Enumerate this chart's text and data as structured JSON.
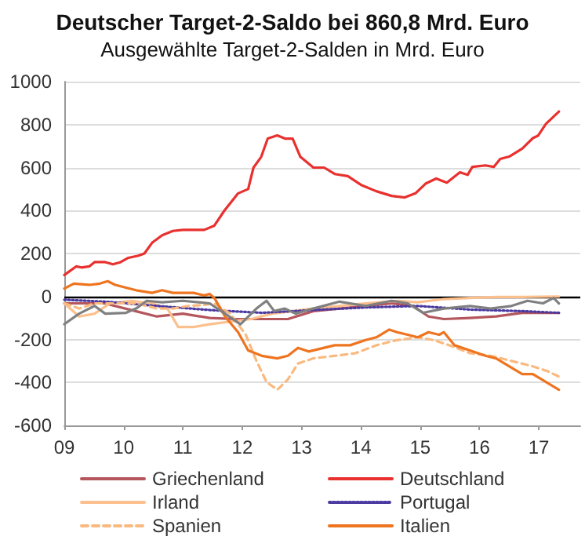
{
  "chart_data": {
    "type": "line",
    "title": "Deutscher Target-2-Saldo bei 860,8 Mrd. Euro",
    "subtitle": "Ausgewählte Target-2-Salden in Mrd. Euro",
    "xlim": [
      2009,
      2017.7
    ],
    "xticks": [
      {
        "value": 2009,
        "label": "09"
      },
      {
        "value": 2010,
        "label": "10"
      },
      {
        "value": 2011,
        "label": "11"
      },
      {
        "value": 2012,
        "label": "12"
      },
      {
        "value": 2013,
        "label": "13"
      },
      {
        "value": 2014,
        "label": "14"
      },
      {
        "value": 2015,
        "label": "15"
      },
      {
        "value": 2016,
        "label": "16"
      },
      {
        "value": 2017,
        "label": "17"
      }
    ],
    "ylim": [
      -600,
      1000
    ],
    "yticks": [
      -600,
      -400,
      -200,
      0,
      200,
      400,
      600,
      800,
      1000
    ],
    "grid": "y",
    "legend": "bottom",
    "marker": "none",
    "ref_lines": [
      {
        "axis": "y",
        "value": 0,
        "label": null,
        "color": "#000000"
      }
    ],
    "series": [
      {
        "name": "Griechenland",
        "color": "#b5555c",
        "line_style": "solid",
        "x": [
          2009.0,
          2009.68,
          2010.2,
          2010.56,
          2011.0,
          2011.45,
          2011.89,
          2012.33,
          2012.77,
          2013.2,
          2013.64,
          2014.08,
          2014.52,
          2014.88,
          2015.14,
          2015.4,
          2015.84,
          2016.28,
          2016.72,
          2017.34
        ],
        "values": [
          -32,
          -32,
          -68,
          -93,
          -80,
          -100,
          -105,
          -105,
          -105,
          -68,
          -56,
          -44,
          -32,
          -44,
          -93,
          -105,
          -100,
          -93,
          -76,
          -76
        ]
      },
      {
        "name": "Deutschland",
        "color": "#e8312f",
        "line_style": "solid",
        "x": [
          2009.0,
          2009.2,
          2009.29,
          2009.42,
          2009.51,
          2009.69,
          2009.82,
          2009.95,
          2010.08,
          2010.25,
          2010.35,
          2010.48,
          2010.65,
          2010.83,
          2011.0,
          2011.36,
          2011.53,
          2011.7,
          2011.93,
          2012.1,
          2012.19,
          2012.32,
          2012.43,
          2012.59,
          2012.72,
          2012.85,
          2012.98,
          2013.2,
          2013.38,
          2013.56,
          2013.78,
          2014.0,
          2014.26,
          2014.52,
          2014.74,
          2014.92,
          2015.09,
          2015.27,
          2015.45,
          2015.67,
          2015.8,
          2015.88,
          2016.1,
          2016.24,
          2016.35,
          2016.5,
          2016.72,
          2016.9,
          2016.99,
          2017.12,
          2017.34
        ],
        "values": [
          100,
          140,
          135,
          140,
          160,
          160,
          150,
          160,
          180,
          190,
          200,
          250,
          285,
          305,
          310,
          310,
          330,
          400,
          480,
          500,
          600,
          650,
          735,
          750,
          735,
          735,
          650,
          600,
          600,
          570,
          560,
          520,
          490,
          468,
          461,
          480,
          525,
          549,
          530,
          578,
          566,
          603,
          610,
          603,
          640,
          651,
          688,
          737,
          749,
          803,
          861
        ]
      },
      {
        "name": "Irland",
        "color": "#fbc08d",
        "line_style": "solid",
        "x": [
          2009.0,
          2009.25,
          2009.51,
          2009.77,
          2010.13,
          2010.48,
          2010.74,
          2010.92,
          2011.18,
          2011.45,
          2011.8,
          2012.15,
          2012.5,
          2012.85,
          2013.2,
          2013.64,
          2014.08,
          2014.61,
          2014.96,
          2015.4,
          2015.84,
          2016.28,
          2016.72,
          2017.34
        ],
        "values": [
          -32,
          -93,
          -80,
          -32,
          -20,
          -32,
          -56,
          -142,
          -142,
          -129,
          -117,
          -105,
          -80,
          -68,
          -56,
          -44,
          -32,
          -20,
          -27,
          -12,
          -7,
          -2,
          -2,
          0
        ]
      },
      {
        "name": "Portugal",
        "color": "#4b3aa0",
        "line_style": "dotted",
        "x": [
          2009.0,
          2009.69,
          2010.56,
          2011.45,
          2012.33,
          2013.2,
          2014.08,
          2014.96,
          2015.84,
          2016.72,
          2017.34
        ],
        "values": [
          -15,
          -24,
          -44,
          -63,
          -76,
          -63,
          -51,
          -44,
          -61,
          -68,
          -76
        ]
      },
      {
        "name": "Spanien",
        "color": "#f9b97f",
        "line_style": "dashed",
        "x": [
          2009.0,
          2009.25,
          2009.51,
          2009.86,
          2010.21,
          2010.56,
          2010.83,
          2011.09,
          2011.36,
          2011.53,
          2011.8,
          2012.06,
          2012.24,
          2012.41,
          2012.59,
          2012.77,
          2012.94,
          2013.2,
          2013.56,
          2013.91,
          2014.26,
          2014.61,
          2014.96,
          2015.23,
          2015.49,
          2015.84,
          2016.19,
          2016.54,
          2016.9,
          2017.16,
          2017.34
        ],
        "values": [
          -32,
          -56,
          -32,
          -32,
          -32,
          -56,
          -56,
          -44,
          -39,
          -32,
          -80,
          -178,
          -300,
          -398,
          -434,
          -386,
          -312,
          -288,
          -276,
          -264,
          -227,
          -203,
          -190,
          -203,
          -227,
          -264,
          -276,
          -300,
          -325,
          -349,
          -373
        ]
      },
      {
        "name": "Italien",
        "color": "#ee7420",
        "line_style": "solid",
        "x": [
          2009.0,
          2009.16,
          2009.42,
          2009.6,
          2009.73,
          2009.86,
          2010.04,
          2010.21,
          2010.48,
          2010.65,
          2010.83,
          2011.18,
          2011.36,
          2011.45,
          2011.53,
          2011.71,
          2011.93,
          2012.1,
          2012.33,
          2012.59,
          2012.77,
          2012.94,
          2013.12,
          2013.38,
          2013.56,
          2013.82,
          2014.08,
          2014.26,
          2014.48,
          2014.61,
          2014.79,
          2014.96,
          2015.14,
          2015.32,
          2015.4,
          2015.58,
          2015.84,
          2016.1,
          2016.28,
          2016.5,
          2016.72,
          2016.9,
          2017.12,
          2017.34
        ],
        "values": [
          37,
          60,
          54,
          60,
          71,
          54,
          41,
          29,
          17,
          29,
          17,
          17,
          5,
          12,
          -7,
          -93,
          -166,
          -251,
          -276,
          -288,
          -276,
          -239,
          -256,
          -239,
          -227,
          -227,
          -203,
          -190,
          -154,
          -166,
          -178,
          -190,
          -166,
          -178,
          -166,
          -227,
          -251,
          -276,
          -288,
          -325,
          -361,
          -361,
          -398,
          -434
        ]
      },
      {
        "color": "#808080",
        "line_style": "solid",
        "x": [
          2009.0,
          2009.25,
          2009.51,
          2009.69,
          2010.04,
          2010.21,
          2010.39,
          2010.65,
          2011.0,
          2011.45,
          2011.71,
          2011.97,
          2012.24,
          2012.41,
          2012.54,
          2012.72,
          2012.9,
          2013.2,
          2013.64,
          2014.08,
          2014.52,
          2014.79,
          2015.05,
          2015.4,
          2015.84,
          2016.19,
          2016.54,
          2016.81,
          2017.07,
          2017.25,
          2017.34
        ],
        "values": [
          -129,
          -80,
          -44,
          -80,
          -76,
          -56,
          -20,
          -27,
          -20,
          -32,
          -80,
          -129,
          -56,
          -20,
          -68,
          -56,
          -80,
          -56,
          -24,
          -44,
          -20,
          -32,
          -76,
          -56,
          -44,
          -56,
          -44,
          -20,
          -32,
          -7,
          -32
        ]
      }
    ]
  }
}
